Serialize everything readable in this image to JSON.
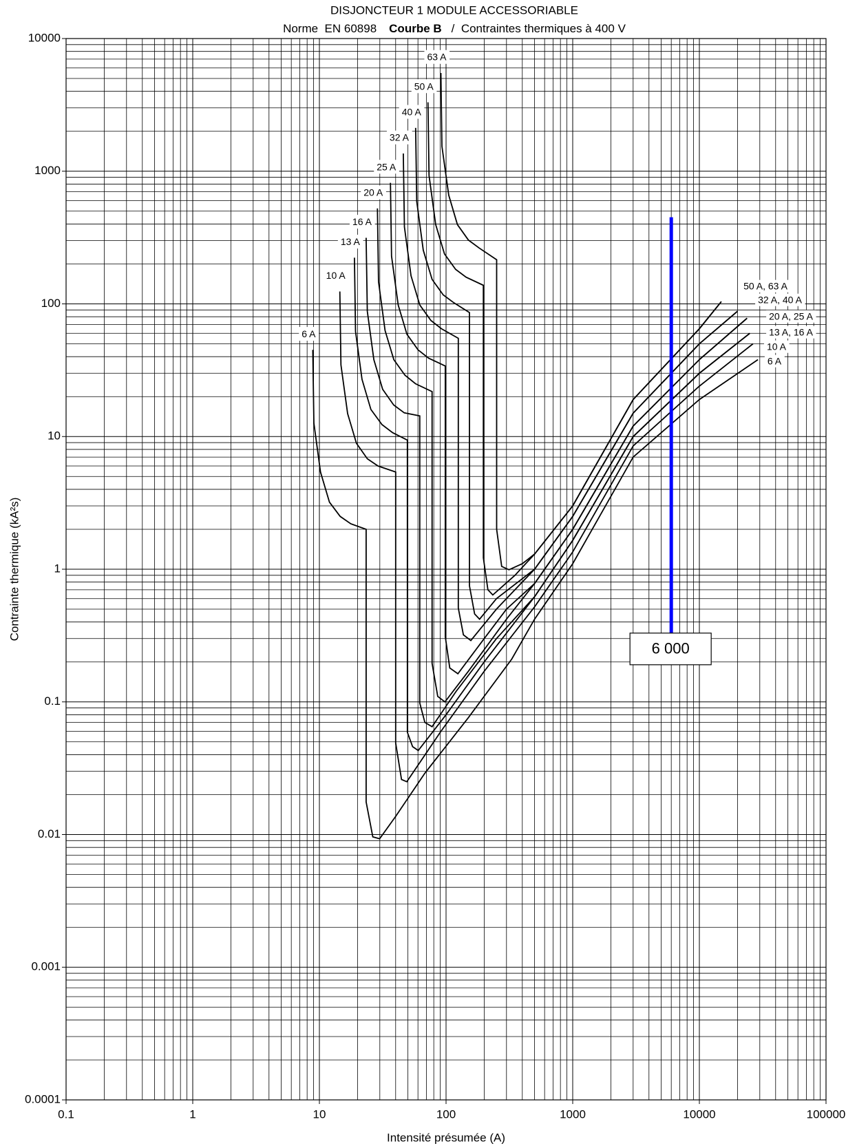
{
  "chart_data": {
    "type": "line",
    "title": "DISJONCTEUR 1 MODULE ACCESSORIABLE",
    "subtitle": [
      "Norme  EN 60898",
      "Courbe B",
      "/  Contraintes thermiques à 400 V"
    ],
    "x_label": "Intensité présumée (A)",
    "y_label": "Contrainte thermique (kA²s)",
    "xscale": "log",
    "yscale": "log",
    "grid": true,
    "minor_grid": true,
    "xlim": [
      0.1,
      100000
    ],
    "xticks": [
      0.1,
      1,
      10,
      100,
      1000,
      10000,
      100000
    ],
    "ylim": [
      0.0001,
      10000
    ],
    "yticks": [
      0.0001,
      0.001,
      0.01,
      0.1,
      1,
      10,
      100,
      1000,
      10000
    ],
    "series": [
      {
        "name": "6 A",
        "color": "#000000",
        "x": [
          8.87,
          9.05,
          10.2,
          12,
          14.6,
          17.7,
          23.4,
          23.4,
          26.4,
          29.9,
          40,
          68,
          150,
          330,
          500,
          1000,
          3000,
          10000,
          29000
        ],
        "y": [
          45,
          12.6,
          5.4,
          3.2,
          2.5,
          2.2,
          2.0,
          0.0176,
          0.0096,
          0.0093,
          0.0137,
          0.029,
          0.076,
          0.21,
          0.42,
          1.1,
          7,
          19,
          38
        ]
      },
      {
        "name": "10 A",
        "color": "#000000",
        "x": [
          14.5,
          14.8,
          16.7,
          19.6,
          23.9,
          29,
          40,
          40,
          44.5,
          49,
          90,
          200,
          500,
          1000,
          3000,
          10000,
          26500
        ],
        "y": [
          124,
          34.7,
          14.9,
          8.9,
          6.8,
          6.0,
          5.4,
          0.049,
          0.026,
          0.025,
          0.059,
          0.17,
          0.52,
          1.35,
          8.5,
          24,
          50
        ]
      },
      {
        "name": "13 A",
        "color": "#000000",
        "x": [
          18.9,
          19.3,
          21.7,
          25.5,
          31.2,
          37.8,
          49.5,
          49.5,
          54.4,
          60.3,
          100,
          200,
          500,
          1000,
          3000,
          10000,
          25000
        ],
        "y": [
          223,
          62,
          27,
          16,
          12.3,
          10.7,
          9.4,
          0.059,
          0.046,
          0.043,
          0.08,
          0.2,
          0.62,
          1.65,
          10,
          30,
          60
        ]
      },
      {
        "name": "16 A",
        "color": "#000000",
        "x": [
          23.4,
          23.9,
          26.9,
          31.6,
          38.6,
          46.8,
          62,
          62,
          68,
          77.6,
          120,
          250,
          500,
          1000,
          3000,
          10000,
          25000
        ],
        "y": [
          315,
          88,
          38,
          22.7,
          17.3,
          15.1,
          14.3,
          0.098,
          0.07,
          0.065,
          0.12,
          0.3,
          0.62,
          1.65,
          10,
          30,
          60
        ]
      },
      {
        "name": "20 A",
        "color": "#000000",
        "x": [
          28.7,
          29.3,
          33,
          38.7,
          47.4,
          57.4,
          77.6,
          77.6,
          86,
          98,
          150,
          300,
          500,
          1000,
          3000,
          10000,
          23800
        ],
        "y": [
          524,
          147,
          63,
          38,
          29,
          25,
          21.8,
          0.195,
          0.11,
          0.1,
          0.17,
          0.42,
          0.78,
          2.0,
          12,
          38,
          78
        ]
      },
      {
        "name": "25 A",
        "color": "#000000",
        "x": [
          36.4,
          37.1,
          41.9,
          49.1,
          60.1,
          72.8,
          98.6,
          98.6,
          107,
          124,
          200,
          300,
          500,
          1000,
          3000,
          10000,
          23800
        ],
        "y": [
          818,
          229,
          98,
          59,
          45,
          39,
          34,
          0.31,
          0.18,
          0.163,
          0.3,
          0.5,
          0.78,
          2.0,
          12,
          38,
          78
        ]
      },
      {
        "name": "32 A",
        "color": "#000000",
        "x": [
          46,
          46.9,
          52.9,
          62.1,
          75.9,
          92,
          125,
          125,
          137,
          157,
          250,
          500,
          1000,
          3000,
          10000,
          20000
        ],
        "y": [
          1360,
          381,
          163,
          98,
          75,
          65,
          55,
          0.51,
          0.32,
          0.29,
          0.5,
          1.0,
          2.5,
          15,
          50,
          88
        ]
      },
      {
        "name": "40 A",
        "color": "#000000",
        "x": [
          57.5,
          58.7,
          66.1,
          77.6,
          94.9,
          115,
          153,
          153,
          168,
          184,
          250,
          500,
          1000,
          3000,
          10000,
          20000
        ],
        "y": [
          2120,
          594,
          254,
          153,
          117,
          102,
          86,
          0.75,
          0.46,
          0.42,
          0.6,
          1.0,
          2.5,
          15,
          50,
          88
        ]
      },
      {
        "name": "50 A",
        "color": "#000000",
        "x": [
          72,
          73.4,
          82.8,
          97.2,
          119,
          144,
          197,
          197,
          214,
          234,
          350,
          500,
          1000,
          3000,
          10000,
          14900
        ],
        "y": [
          3310,
          927,
          397,
          238,
          182,
          159,
          138,
          1.22,
          0.7,
          0.64,
          0.9,
          1.3,
          3.0,
          19,
          65,
          104
        ]
      },
      {
        "name": "63 A",
        "color": "#000000",
        "x": [
          91,
          92.8,
          105,
          123,
          150,
          182,
          251,
          251,
          275,
          314,
          400,
          500,
          1000,
          3000,
          10000,
          14900
        ],
        "y": [
          5500,
          1540,
          660,
          396,
          303,
          264,
          215,
          2.0,
          1.05,
          0.99,
          1.1,
          1.3,
          3.0,
          19,
          65,
          104
        ]
      }
    ],
    "group_labels": [
      "50 A, 63 A",
      "32 A, 40 A",
      "20 A, 25 A",
      "13 A, 16 A",
      "10 A",
      "6 A"
    ],
    "marker": {
      "x": 6000,
      "y": [
        0.33,
        450
      ],
      "label": "6 000",
      "color": "#0000ff"
    }
  }
}
